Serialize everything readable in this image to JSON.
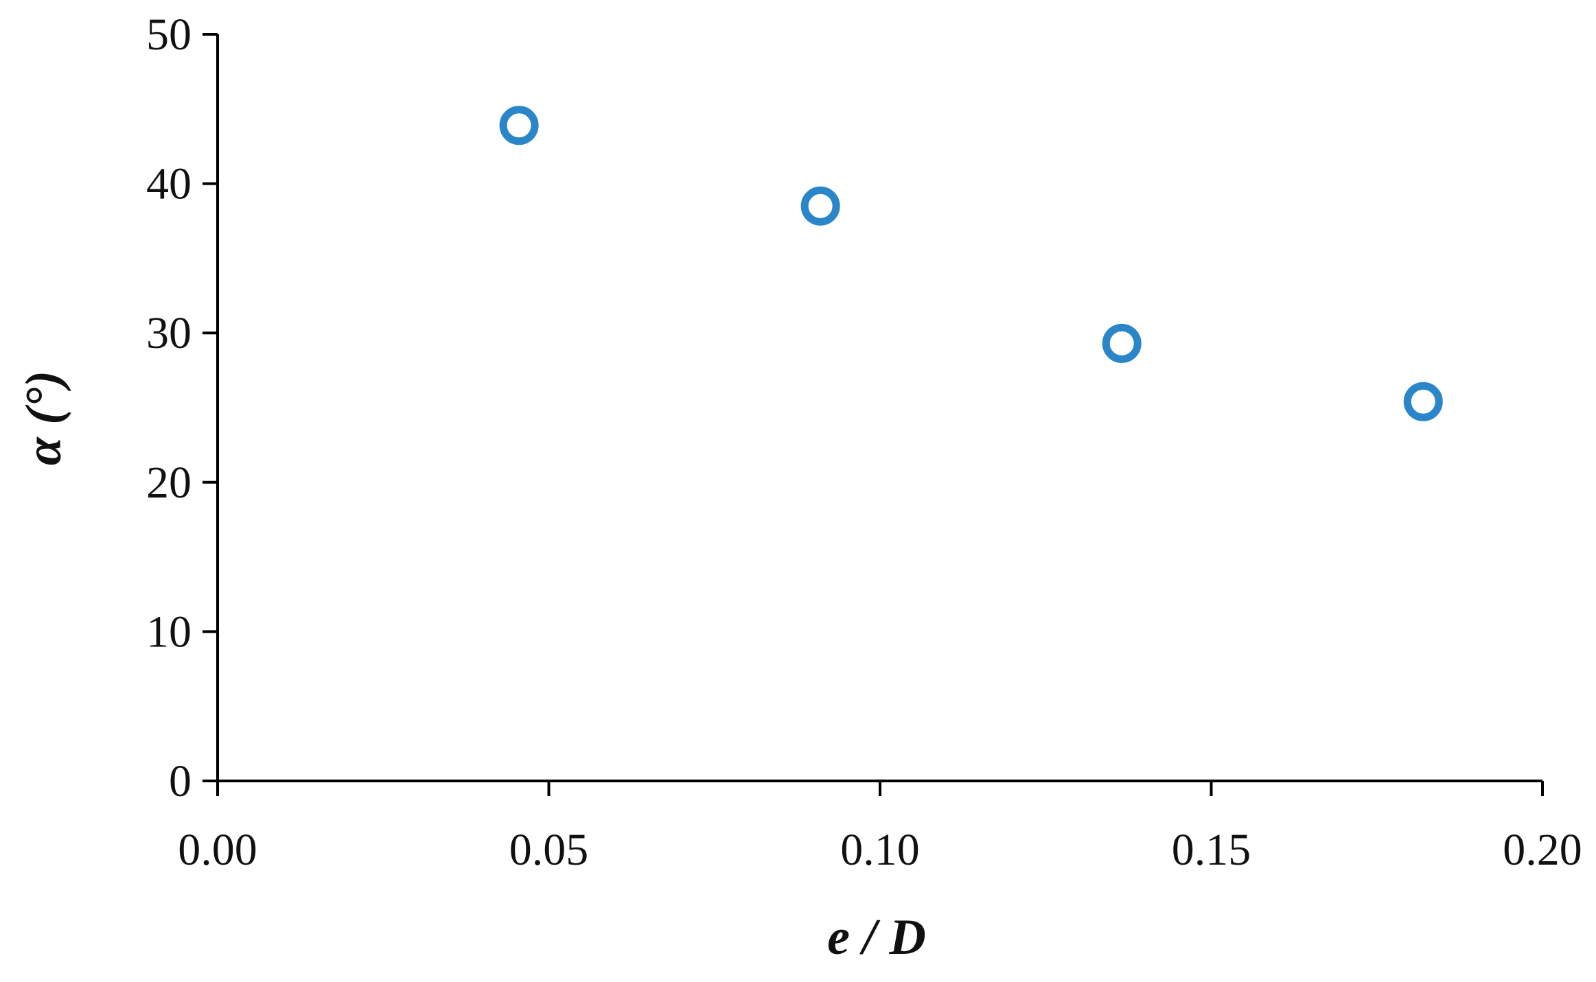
{
  "chart_data": {
    "type": "scatter",
    "xlabel": "e / D",
    "ylabel": "α (°)",
    "xlim": [
      0.0,
      0.2
    ],
    "ylim": [
      0,
      50
    ],
    "x_ticks": [
      "0.00",
      "0.05",
      "0.10",
      "0.15",
      "0.20"
    ],
    "y_ticks": [
      "0",
      "10",
      "20",
      "30",
      "40",
      "50"
    ],
    "grid": false,
    "legend": "none",
    "series": [
      {
        "x": [
          0.0455,
          0.091,
          0.1365,
          0.182
        ],
        "y": [
          43.9,
          38.5,
          29.3,
          25.4
        ],
        "marker": "open-circle",
        "color": "#2a86c8"
      }
    ]
  }
}
